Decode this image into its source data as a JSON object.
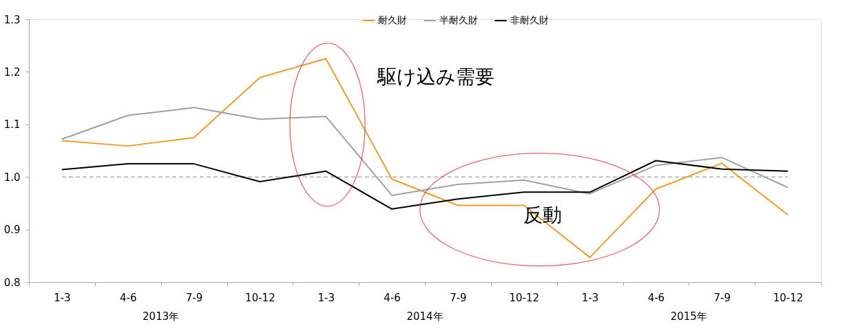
{
  "chart_data": {
    "type": "line",
    "categories": [
      "1-3",
      "4-6",
      "7-9",
      "10-12",
      "1-3",
      "4-6",
      "7-9",
      "10-12",
      "1-3",
      "4-6",
      "7-9",
      "10-12"
    ],
    "series": [
      {
        "name": "耐久財",
        "color": "#f59a23",
        "values": [
          1.069,
          1.059,
          1.075,
          1.189,
          1.225,
          0.996,
          0.946,
          0.946,
          0.847,
          0.977,
          1.026,
          0.928
        ]
      },
      {
        "name": "半耐久財",
        "color": "#a0a0a0",
        "values": [
          1.072,
          1.117,
          1.132,
          1.11,
          1.115,
          0.965,
          0.986,
          0.994,
          0.968,
          1.022,
          1.037,
          0.98
        ]
      },
      {
        "name": "非耐久財",
        "color": "#000000",
        "values": [
          1.014,
          1.025,
          1.025,
          0.991,
          1.011,
          0.939,
          0.958,
          0.971,
          0.971,
          1.031,
          1.015,
          1.011
        ]
      }
    ],
    "ylim": [
      0.8,
      1.3
    ],
    "yticks": [
      0.8,
      0.9,
      {
        "value": 1.0,
        "label": "1.0"
      },
      1.1,
      1.2,
      1.3
    ],
    "ref_lines": [
      {
        "axis": "y",
        "value": 1.0,
        "color": "#bfbfbf",
        "line_style": "dashed"
      }
    ],
    "annotations": [
      "駆け込み需要",
      "反動",
      "2013年",
      "2014年",
      "2015年"
    ],
    "legend": "top",
    "grid": false,
    "marker": "none",
    "line_style": "solid"
  }
}
